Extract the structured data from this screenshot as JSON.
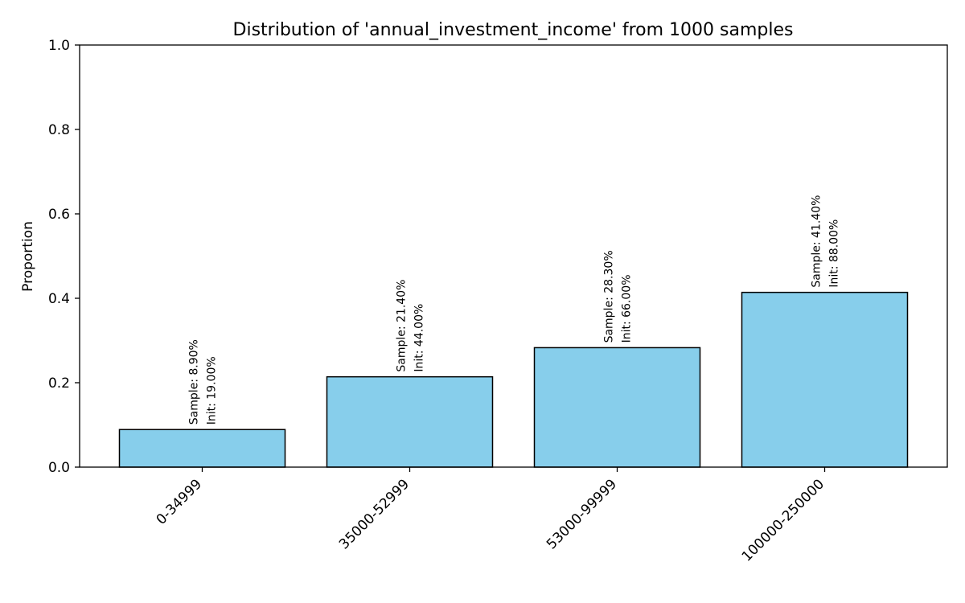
{
  "chart_data": {
    "type": "bar",
    "title": "Distribution of 'annual_investment_income' from 1000 samples",
    "xlabel": "",
    "ylabel": "Proportion",
    "ylim": [
      0,
      1
    ],
    "yticks": [
      "0.0",
      "0.2",
      "0.4",
      "0.6",
      "0.8",
      "1.0"
    ],
    "categories": [
      "0-34999",
      "35000-52999",
      "53000-99999",
      "100000-250000"
    ],
    "values": [
      0.089,
      0.214,
      0.283,
      0.414
    ],
    "bar_labels": [
      [
        "Sample: 8.90%",
        "Init: 19.00%"
      ],
      [
        "Sample: 21.40%",
        "Init: 44.00%"
      ],
      [
        "Sample: 28.30%",
        "Init: 66.00%"
      ],
      [
        "Sample: 41.40%",
        "Init: 88.00%"
      ]
    ],
    "bar_color": "#87ceeb",
    "edge_color": "#000000",
    "grid": false,
    "legend": "none"
  }
}
